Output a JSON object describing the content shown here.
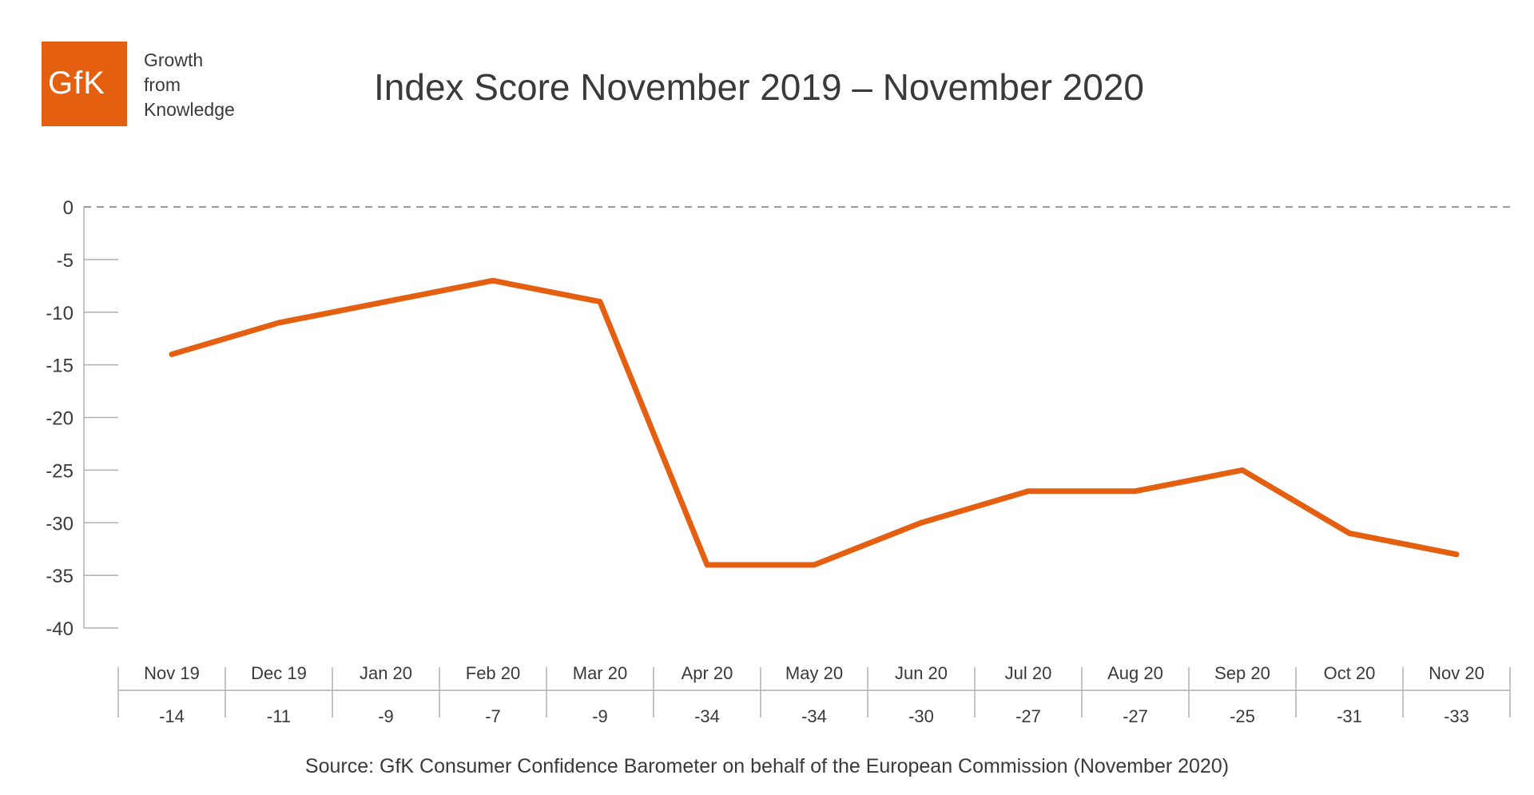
{
  "logo": {
    "text": "GfK",
    "tagline": [
      "Growth",
      "from",
      "Knowledge"
    ],
    "color": "#e55f11"
  },
  "title": "Index Score November 2019 – November 2020",
  "source": "Source: GfK Consumer Confidence Barometer on behalf of the European Commission (November 2020)",
  "chart_data": {
    "type": "line",
    "categories": [
      "Nov 19",
      "Dec 19",
      "Jan 20",
      "Feb 20",
      "Mar 20",
      "Apr 20",
      "May 20",
      "Jun 20",
      "Jul 20",
      "Aug 20",
      "Sep 20",
      "Oct 20",
      "Nov 20"
    ],
    "series": [
      {
        "values": [
          -14,
          -11,
          -9,
          -7,
          -9,
          -34,
          -34,
          -30,
          -27,
          -27,
          -25,
          -31,
          -33
        ],
        "color": "#e55f11"
      }
    ],
    "table_values": [
      "-14",
      "-11",
      "-9",
      "-7",
      "-9",
      "-34",
      "-34",
      "-30",
      "-27",
      "-27",
      "-25",
      "-31",
      "-33"
    ],
    "y_ticks": [
      "0",
      "-5",
      "-10",
      "-15",
      "-20",
      "-25",
      "-30",
      "-35",
      "-40"
    ],
    "ylim": [
      -40,
      0
    ],
    "zero_line": "dashed",
    "grid": false
  }
}
